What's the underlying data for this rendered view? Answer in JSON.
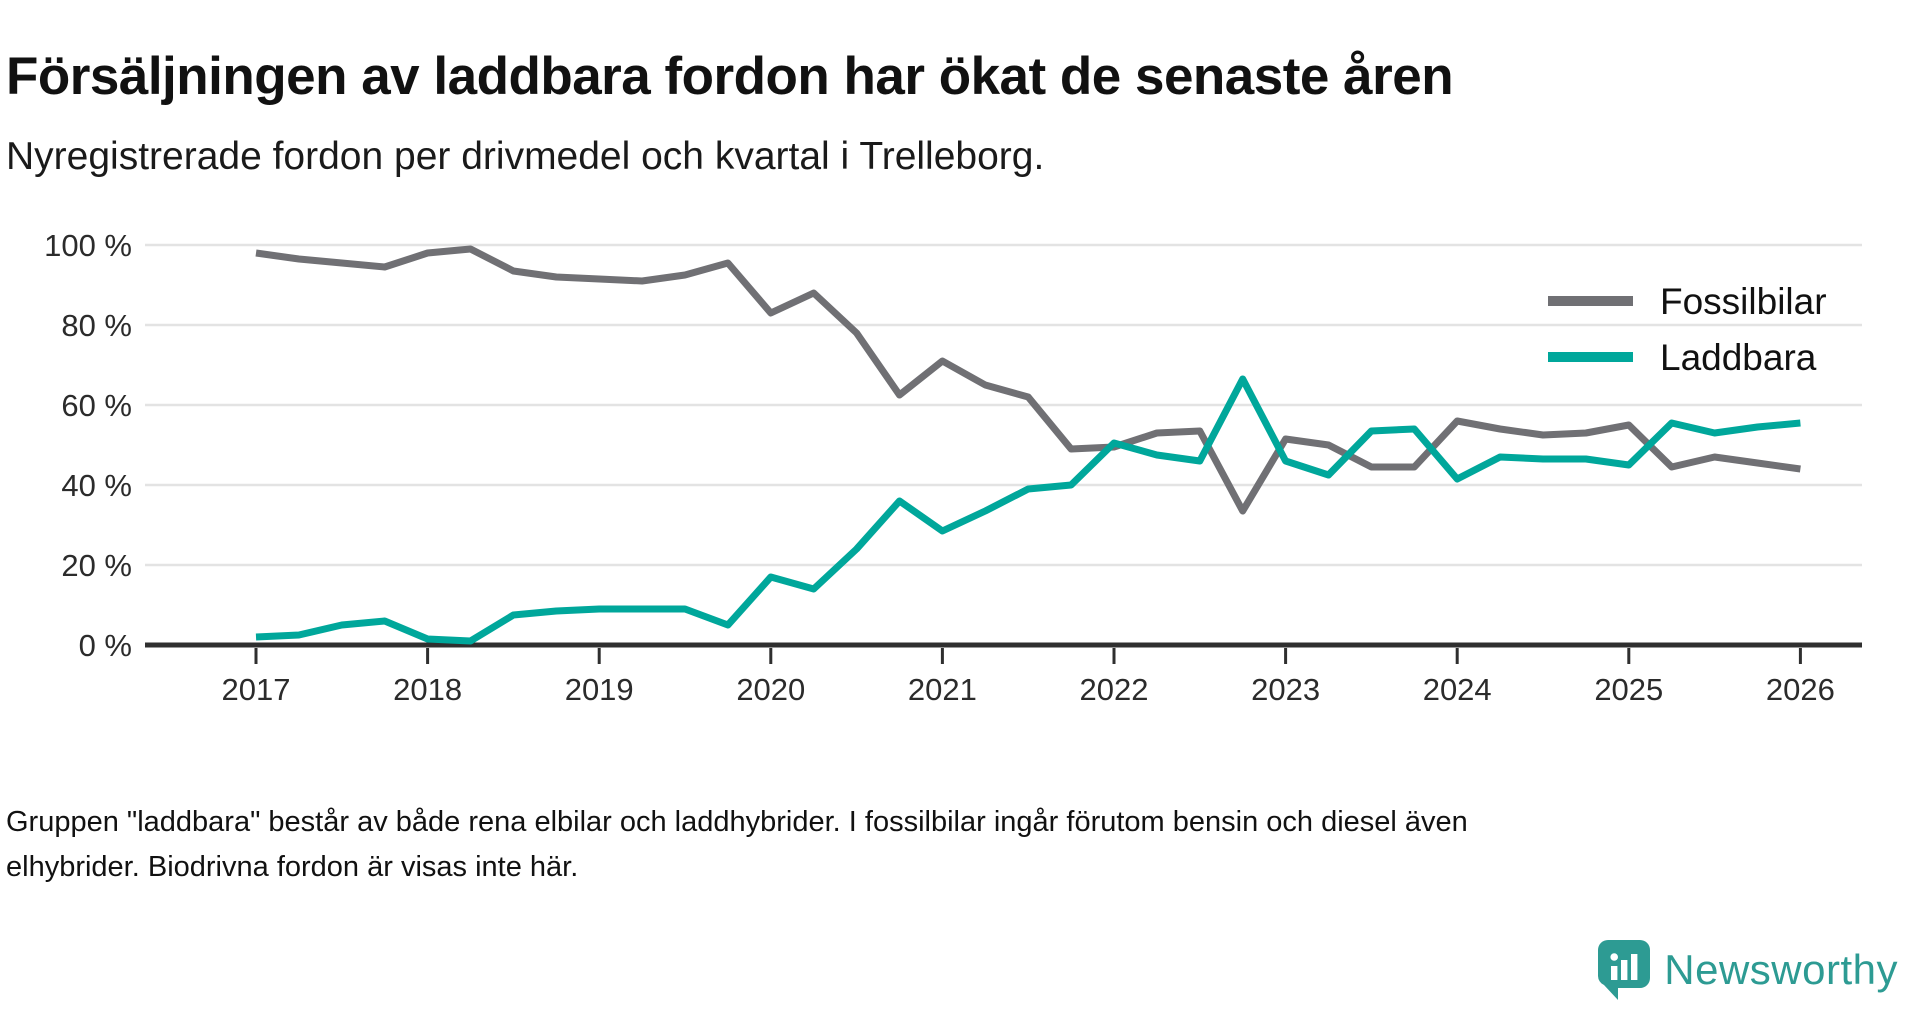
{
  "header": {
    "title": "Försäljningen av laddbara fordon har ökat de senaste åren",
    "subtitle": "Nyregistrerade fordon per drivmedel och kvartal i Trelleborg."
  },
  "footer": {
    "note": "Gruppen \"laddbara\" består av både rena elbilar och laddhybrider. I fossilbilar ingår förutom bensin och diesel även elhybrider. Biodrivna fordon är visas inte här."
  },
  "branding": {
    "logo_text": "Newsworthy",
    "logo_color": "#2d9b93",
    "logo_icon": "bar-chart-pin-icon"
  },
  "chart_data": {
    "type": "line",
    "title": "Försäljningen av laddbara fordon har ökat de senaste åren",
    "subtitle": "Nyregistrerade fordon per drivmedel och kvartal i Trelleborg.",
    "unit": "%",
    "ylim": [
      0,
      100
    ],
    "grid": "horizontal",
    "legend_position": "top-right",
    "y_ticks": [
      {
        "value": 100,
        "label": "100 %"
      },
      {
        "value": 80,
        "label": "80 %"
      },
      {
        "value": 60,
        "label": "60 %"
      },
      {
        "value": 40,
        "label": "40 %"
      },
      {
        "value": 20,
        "label": "20 %"
      },
      {
        "value": 0,
        "label": "0 %"
      }
    ],
    "x_tick_labels": [
      "2017",
      "2018",
      "2019",
      "2020",
      "2021",
      "2022",
      "2023",
      "2024",
      "2025",
      "2026"
    ],
    "quarters": [
      "2017 Q1",
      "2017 Q2",
      "2017 Q3",
      "2017 Q4",
      "2018 Q1",
      "2018 Q2",
      "2018 Q3",
      "2018 Q4",
      "2019 Q1",
      "2019 Q2",
      "2019 Q3",
      "2019 Q4",
      "2020 Q1",
      "2020 Q2",
      "2020 Q3",
      "2020 Q4",
      "2021 Q1",
      "2021 Q2",
      "2021 Q3",
      "2021 Q4",
      "2022 Q1",
      "2022 Q2",
      "2022 Q3",
      "2022 Q4",
      "2023 Q1",
      "2023 Q2",
      "2023 Q3",
      "2023 Q4",
      "2024 Q1",
      "2024 Q2",
      "2024 Q3",
      "2024 Q4",
      "2025 Q1",
      "2025 Q2",
      "2025 Q3",
      "2025 Q4",
      "2026 Q1"
    ],
    "series": [
      {
        "name": "Fossilbilar",
        "color": "#707074",
        "values": [
          98,
          96.5,
          95.5,
          94.5,
          98,
          99,
          93.5,
          92,
          91.5,
          91,
          92.5,
          95.5,
          83,
          88,
          78,
          62.5,
          71,
          65,
          62,
          49,
          49.5,
          53,
          53.5,
          33.5,
          51.5,
          50,
          44.5,
          44.5,
          56,
          54,
          52.5,
          53,
          55,
          44.5,
          47,
          45.5,
          44
        ]
      },
      {
        "name": "Laddbara",
        "color": "#00a79b",
        "values": [
          2,
          2.5,
          5,
          6,
          1.5,
          1,
          7.5,
          8.5,
          9,
          9,
          9,
          5,
          17,
          14,
          24,
          36,
          28.5,
          33.5,
          39,
          40,
          50.5,
          47.5,
          46,
          66.5,
          46,
          42.5,
          53.5,
          54,
          41.5,
          47,
          46.5,
          46.5,
          45,
          55.5,
          53,
          54.5,
          55.5
        ]
      }
    ]
  }
}
